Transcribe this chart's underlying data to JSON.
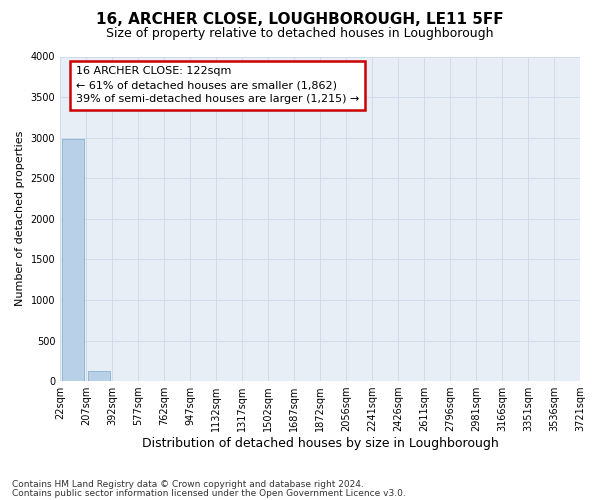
{
  "title": "16, ARCHER CLOSE, LOUGHBOROUGH, LE11 5FF",
  "subtitle": "Size of property relative to detached houses in Loughborough",
  "xlabel": "Distribution of detached houses by size in Loughborough",
  "ylabel": "Number of detached properties",
  "footnote1": "Contains HM Land Registry data © Crown copyright and database right 2024.",
  "footnote2": "Contains public sector information licensed under the Open Government Licence v3.0.",
  "bin_labels": [
    "22sqm",
    "207sqm",
    "392sqm",
    "577sqm",
    "762sqm",
    "947sqm",
    "1132sqm",
    "1317sqm",
    "1502sqm",
    "1687sqm",
    "1872sqm",
    "2056sqm",
    "2241sqm",
    "2426sqm",
    "2611sqm",
    "2796sqm",
    "2981sqm",
    "3166sqm",
    "3351sqm",
    "3536sqm",
    "3721sqm"
  ],
  "bar_values": [
    2985,
    120,
    0,
    0,
    0,
    0,
    0,
    0,
    0,
    0,
    0,
    0,
    0,
    0,
    0,
    0,
    0,
    0,
    0,
    0
  ],
  "bar_color": "#b8d0e8",
  "bar_edge_color": "#7aaac8",
  "ylim": [
    0,
    4000
  ],
  "yticks": [
    0,
    500,
    1000,
    1500,
    2000,
    2500,
    3000,
    3500,
    4000
  ],
  "property_label": "16 ARCHER CLOSE: 122sqm",
  "annotation_line1": "← 61% of detached houses are smaller (1,862)",
  "annotation_line2": "39% of semi-detached houses are larger (1,215) →",
  "annotation_box_edgecolor": "#cc0000",
  "grid_color": "#d0dcea",
  "bg_color": "#e8eef5",
  "title_fontsize": 11,
  "subtitle_fontsize": 9,
  "ylabel_fontsize": 8,
  "xlabel_fontsize": 9,
  "tick_fontsize": 7,
  "annot_fontsize": 8
}
